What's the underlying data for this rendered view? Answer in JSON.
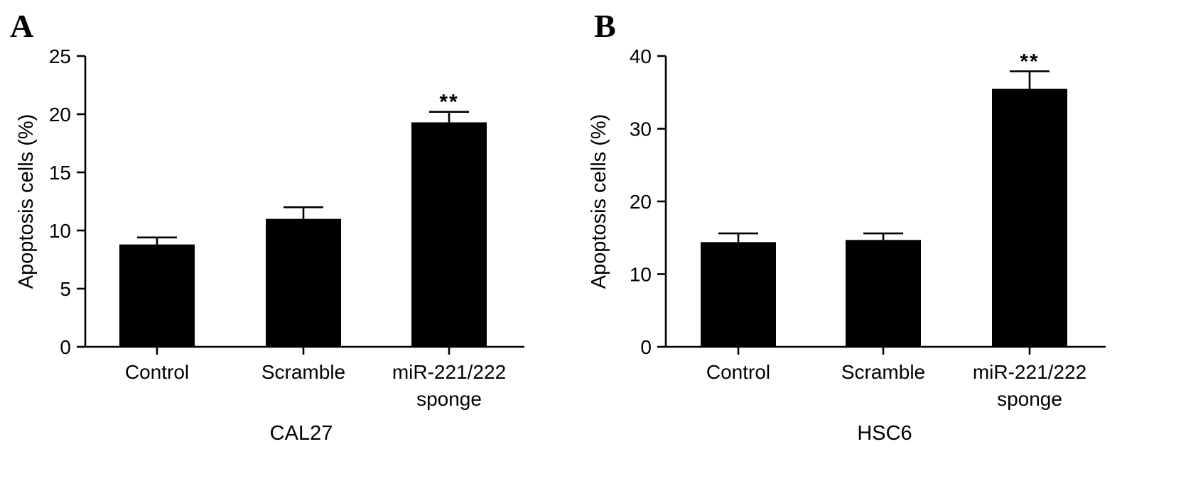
{
  "chart_data": [
    {
      "panel": "A",
      "type": "bar",
      "categories": [
        [
          "Control"
        ],
        [
          "Scramble"
        ],
        [
          "miR-221/222",
          "sponge"
        ]
      ],
      "values": [
        8.8,
        11.0,
        19.3
      ],
      "errors": [
        0.6,
        1.0,
        0.9
      ],
      "significance": [
        "",
        "",
        "**"
      ],
      "ylabel": "Apoptosis cells (%)",
      "xlabel": "CAL27",
      "ylim": [
        0,
        25
      ],
      "yticks": [
        0,
        5,
        10,
        15,
        20,
        25
      ],
      "bar_color": "#000000"
    },
    {
      "panel": "B",
      "type": "bar",
      "categories": [
        [
          "Control"
        ],
        [
          "Scramble"
        ],
        [
          "miR-221/222",
          "sponge"
        ]
      ],
      "values": [
        14.4,
        14.7,
        35.5
      ],
      "errors": [
        1.2,
        0.9,
        2.4
      ],
      "significance": [
        "",
        "",
        "**"
      ],
      "ylabel": "Apoptosis cells (%)",
      "xlabel": "HSC6",
      "ylim": [
        0,
        40
      ],
      "yticks": [
        0,
        10,
        20,
        30,
        40
      ],
      "bar_color": "#000000"
    }
  ]
}
